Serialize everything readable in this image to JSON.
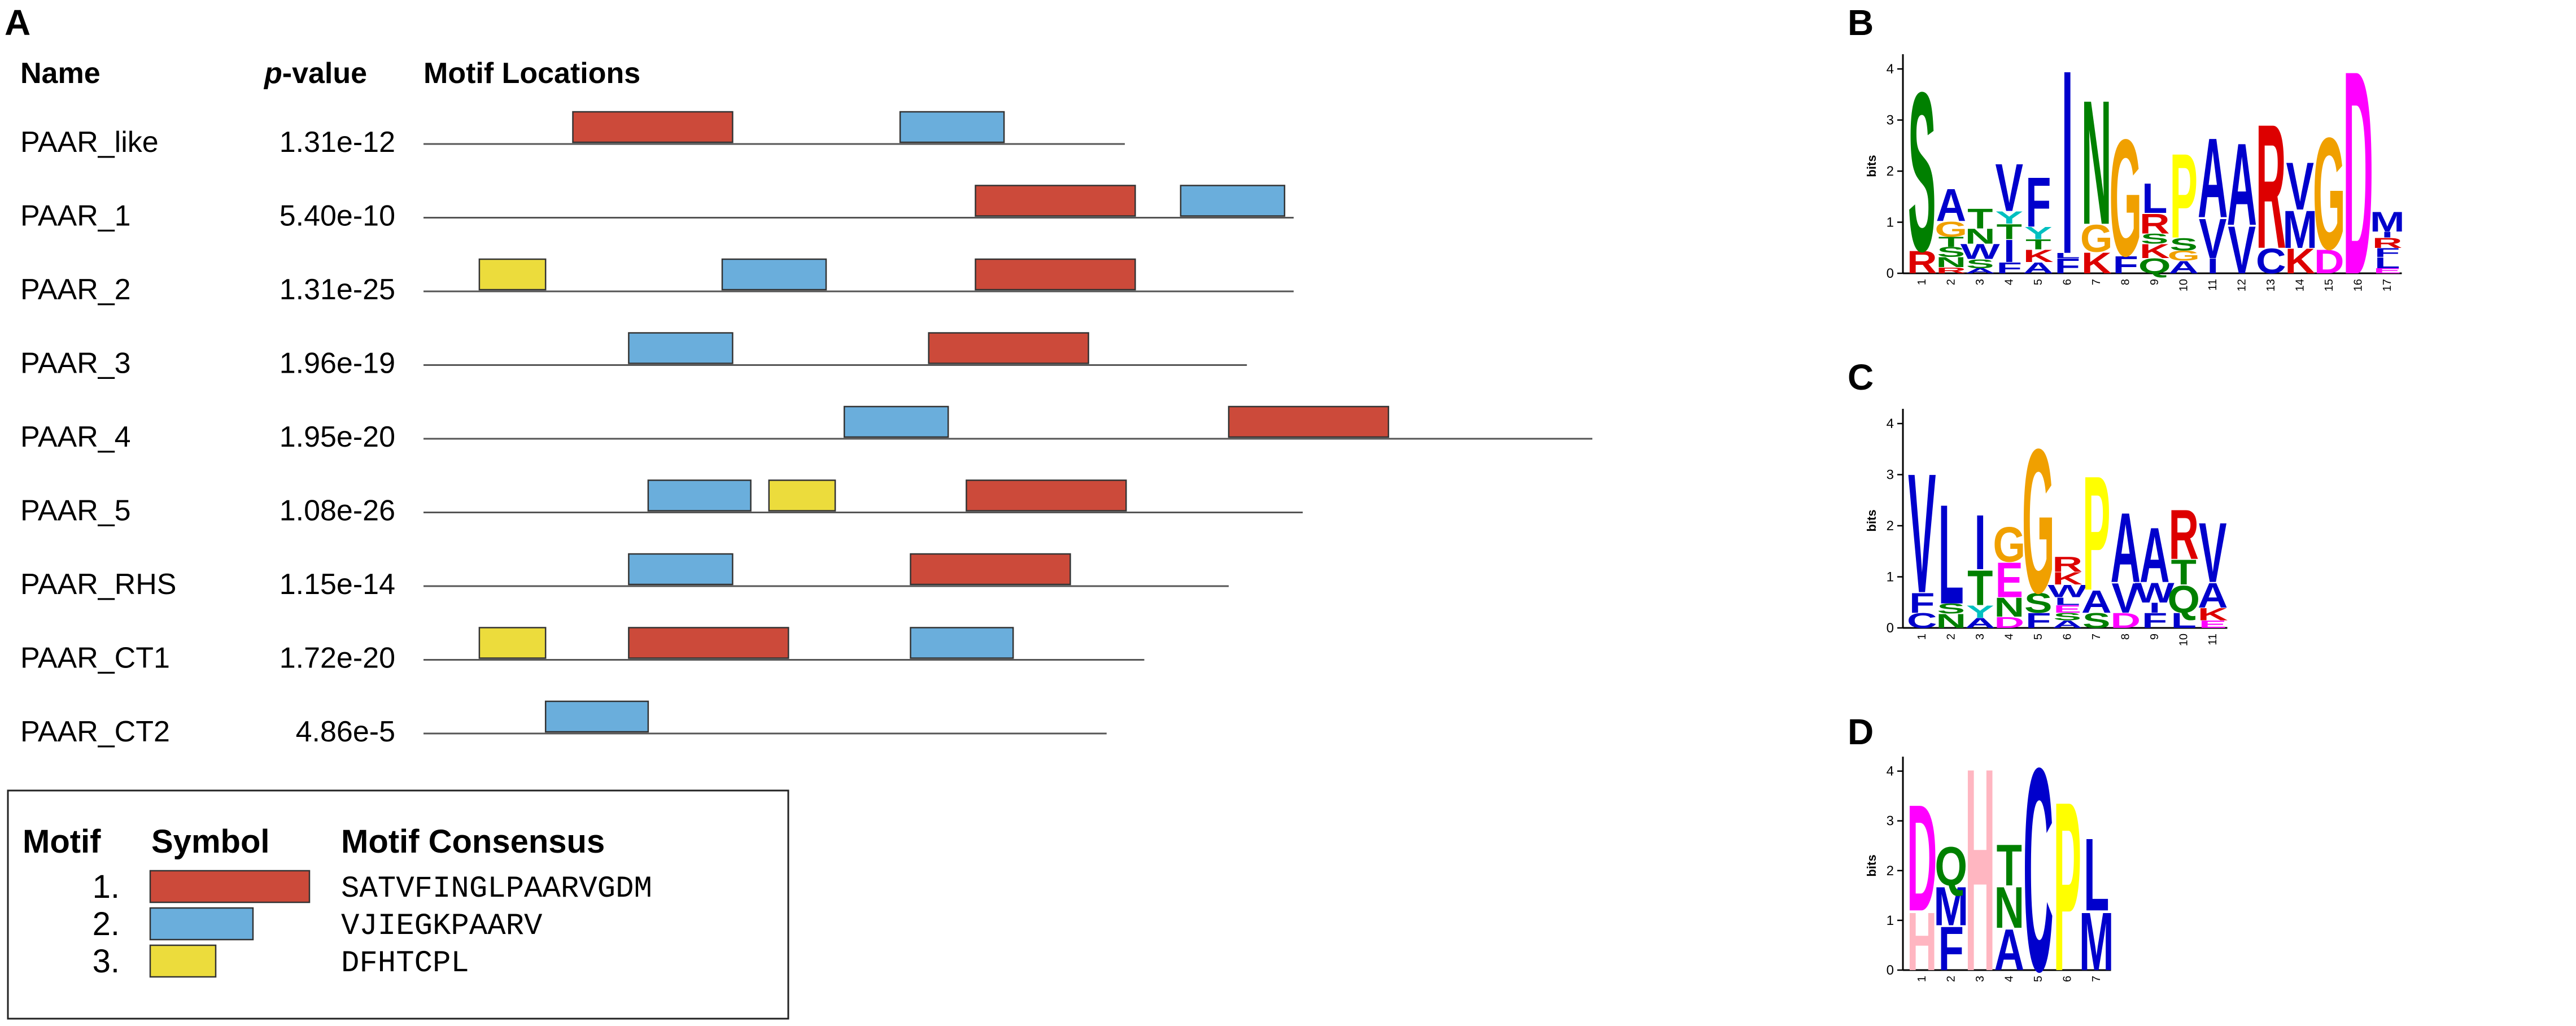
{
  "panels": {
    "A": {
      "letter": "A",
      "headers": {
        "name": "Name",
        "pvalue_p": "p",
        "pvalue_rest": "-value",
        "locations": "Motif Locations"
      },
      "rows": [
        {
          "name": "PAAR_like",
          "pvalue": "1.31e-12",
          "seq_length": 0.54,
          "motifs": [
            {
              "motif": 1,
              "start": 0.115,
              "end": 0.238
            },
            {
              "motif": 2,
              "start": 0.367,
              "end": 0.447
            }
          ]
        },
        {
          "name": "PAAR_1",
          "pvalue": "5.40e-10",
          "seq_length": 0.67,
          "motifs": [
            {
              "motif": 1,
              "start": 0.425,
              "end": 0.548
            },
            {
              "motif": 2,
              "start": 0.583,
              "end": 0.663
            }
          ]
        },
        {
          "name": "PAAR_2",
          "pvalue": "1.31e-25",
          "seq_length": 0.67,
          "motifs": [
            {
              "motif": 3,
              "start": 0.043,
              "end": 0.094
            },
            {
              "motif": 2,
              "start": 0.23,
              "end": 0.31
            },
            {
              "motif": 1,
              "start": 0.425,
              "end": 0.548
            }
          ]
        },
        {
          "name": "PAAR_3",
          "pvalue": "1.96e-19",
          "seq_length": 0.634,
          "motifs": [
            {
              "motif": 2,
              "start": 0.158,
              "end": 0.238
            },
            {
              "motif": 1,
              "start": 0.389,
              "end": 0.512
            }
          ]
        },
        {
          "name": "PAAR_4",
          "pvalue": "1.95e-20",
          "seq_length": 0.9,
          "motifs": [
            {
              "motif": 2,
              "start": 0.324,
              "end": 0.404
            },
            {
              "motif": 1,
              "start": 0.62,
              "end": 0.743
            }
          ]
        },
        {
          "name": "PAAR_5",
          "pvalue": "1.08e-26",
          "seq_length": 0.677,
          "motifs": [
            {
              "motif": 2,
              "start": 0.173,
              "end": 0.252
            },
            {
              "motif": 3,
              "start": 0.266,
              "end": 0.317
            },
            {
              "motif": 1,
              "start": 0.418,
              "end": 0.541
            }
          ]
        },
        {
          "name": "PAAR_RHS",
          "pvalue": "1.15e-14",
          "seq_length": 0.62,
          "motifs": [
            {
              "motif": 2,
              "start": 0.158,
              "end": 0.238
            },
            {
              "motif": 1,
              "start": 0.375,
              "end": 0.498
            }
          ]
        },
        {
          "name": "PAAR_CT1",
          "pvalue": "1.72e-20",
          "seq_length": 0.555,
          "motifs": [
            {
              "motif": 3,
              "start": 0.043,
              "end": 0.094
            },
            {
              "motif": 1,
              "start": 0.158,
              "end": 0.281
            },
            {
              "motif": 2,
              "start": 0.375,
              "end": 0.454
            }
          ]
        },
        {
          "name": "PAAR_CT2",
          "pvalue": "4.86e-5",
          "seq_length": 0.526,
          "motifs": [
            {
              "motif": 2,
              "start": 0.094,
              "end": 0.173
            }
          ]
        }
      ],
      "legend": {
        "headers": {
          "motif": "Motif",
          "symbol": "Symbol",
          "consensus": "Motif Consensus"
        },
        "items": [
          {
            "number": "1.",
            "motif": 1,
            "consensus": "SATVFINGLPAARVGDM"
          },
          {
            "number": "2.",
            "motif": 2,
            "consensus": "VJIEGKPAARV"
          },
          {
            "number": "3.",
            "motif": 3,
            "consensus": "DFHTCPL"
          }
        ]
      },
      "motif_colors": {
        "1": "#cc4a3a",
        "2": "#6aaedc",
        "3": "#ecdc3c"
      }
    },
    "logos": [
      {
        "letter": "B",
        "y_axis_label": "bits",
        "y_ticks": [
          "0",
          "1",
          "2",
          "3",
          "4"
        ],
        "y_max": 4.2,
        "positions": [
          {
            "label": "1",
            "letters": [
              {
                "char": "R",
                "bits": 0.45
              },
              {
                "char": "S",
                "bits": 3.2
              }
            ]
          },
          {
            "label": "2",
            "letters": [
              {
                "char": "R",
                "bits": 0.12
              },
              {
                "char": "N",
                "bits": 0.2
              },
              {
                "char": "S",
                "bits": 0.2
              },
              {
                "char": "T",
                "bits": 0.2
              },
              {
                "char": "G",
                "bits": 0.3
              },
              {
                "char": "A",
                "bits": 0.65
              }
            ]
          },
          {
            "label": "3",
            "letters": [
              {
                "char": "A",
                "bits": 0.1
              },
              {
                "char": "S",
                "bits": 0.18
              },
              {
                "char": "W",
                "bits": 0.3
              },
              {
                "char": "N",
                "bits": 0.3
              },
              {
                "char": "T",
                "bits": 0.4
              }
            ]
          },
          {
            "label": "4",
            "letters": [
              {
                "char": "F",
                "bits": 0.22
              },
              {
                "char": "I",
                "bits": 0.45
              },
              {
                "char": "T",
                "bits": 0.3
              },
              {
                "char": "Y",
                "bits": 0.25
              },
              {
                "char": "V",
                "bits": 0.95
              }
            ]
          },
          {
            "label": "5",
            "letters": [
              {
                "char": "A",
                "bits": 0.22
              },
              {
                "char": "K",
                "bits": 0.25
              },
              {
                "char": "T",
                "bits": 0.2
              },
              {
                "char": "Y",
                "bits": 0.25
              },
              {
                "char": "F",
                "bits": 1.0
              }
            ]
          },
          {
            "label": "6",
            "letters": [
              {
                "char": "F",
                "bits": 0.3
              },
              {
                "char": "L",
                "bits": 0.1
              },
              {
                "char": "I",
                "bits": 3.7
              }
            ]
          },
          {
            "label": "7",
            "letters": [
              {
                "char": "K",
                "bits": 0.42
              },
              {
                "char": "G",
                "bits": 0.55
              },
              {
                "char": "N",
                "bits": 2.5
              }
            ]
          },
          {
            "label": "8",
            "letters": [
              {
                "char": "F",
                "bits": 0.35
              },
              {
                "char": "G",
                "bits": 2.35
              }
            ]
          },
          {
            "label": "9",
            "letters": [
              {
                "char": "Q",
                "bits": 0.3
              },
              {
                "char": "K",
                "bits": 0.28
              },
              {
                "char": "S",
                "bits": 0.2
              },
              {
                "char": "R",
                "bits": 0.4
              },
              {
                "char": "L",
                "bits": 0.6
              }
            ]
          },
          {
            "label": "10",
            "letters": [
              {
                "char": "A",
                "bits": 0.25
              },
              {
                "char": "G",
                "bits": 0.2
              },
              {
                "char": "S",
                "bits": 0.25
              },
              {
                "char": "P",
                "bits": 1.7
              }
            ]
          },
          {
            "label": "11",
            "letters": [
              {
                "char": "I",
                "bits": 0.3
              },
              {
                "char": "V",
                "bits": 0.8
              },
              {
                "char": "A",
                "bits": 1.6
              }
            ]
          },
          {
            "label": "12",
            "letters": [
              {
                "char": "V",
                "bits": 0.95
              },
              {
                "char": "A",
                "bits": 1.65
              }
            ]
          },
          {
            "label": "13",
            "letters": [
              {
                "char": "C",
                "bits": 0.5
              },
              {
                "char": "R",
                "bits": 2.5
              }
            ]
          },
          {
            "label": "14",
            "letters": [
              {
                "char": "K",
                "bits": 0.5
              },
              {
                "char": "M",
                "bits": 0.75
              },
              {
                "char": "V",
                "bits": 0.95
              }
            ]
          },
          {
            "label": "15",
            "letters": [
              {
                "char": "D",
                "bits": 0.48
              },
              {
                "char": "G",
                "bits": 2.25
              }
            ]
          },
          {
            "label": "16",
            "letters": [
              {
                "char": "D",
                "bits": 4.1
              }
            ]
          },
          {
            "label": "17",
            "letters": [
              {
                "char": "E",
                "bits": 0.1
              },
              {
                "char": "L",
                "bits": 0.22
              },
              {
                "char": "F",
                "bits": 0.18
              },
              {
                "char": "R",
                "bits": 0.2
              },
              {
                "char": "I",
                "bits": 0.12
              },
              {
                "char": "M",
                "bits": 0.4
              }
            ]
          }
        ]
      },
      {
        "letter": "C",
        "y_axis_label": "bits",
        "y_ticks": [
          "0",
          "1",
          "2",
          "3",
          "4"
        ],
        "y_max": 4.2,
        "positions": [
          {
            "label": "1",
            "letters": [
              {
                "char": "C",
                "bits": 0.3
              },
              {
                "char": "F",
                "bits": 0.4
              },
              {
                "char": "V",
                "bits": 2.4
              }
            ]
          },
          {
            "label": "2",
            "letters": [
              {
                "char": "N",
                "bits": 0.28
              },
              {
                "char": "S",
                "bits": 0.2
              },
              {
                "char": "L",
                "bits": 2.0
              }
            ]
          },
          {
            "label": "3",
            "letters": [
              {
                "char": "A",
                "bits": 0.2
              },
              {
                "char": "Y",
                "bits": 0.25
              },
              {
                "char": "T",
                "bits": 0.7
              },
              {
                "char": "I",
                "bits": 1.1
              }
            ]
          },
          {
            "label": "4",
            "letters": [
              {
                "char": "D",
                "bits": 0.22
              },
              {
                "char": "N",
                "bits": 0.38
              },
              {
                "char": "E",
                "bits": 0.7
              },
              {
                "char": "G",
                "bits": 0.7
              }
            ]
          },
          {
            "label": "5",
            "letters": [
              {
                "char": "F",
                "bits": 0.3
              },
              {
                "char": "S",
                "bits": 0.4
              },
              {
                "char": "G",
                "bits": 2.9
              }
            ]
          },
          {
            "label": "6",
            "letters": [
              {
                "char": "A",
                "bits": 0.15
              },
              {
                "char": "S",
                "bits": 0.15
              },
              {
                "char": "E",
                "bits": 0.15
              },
              {
                "char": "L",
                "bits": 0.15
              },
              {
                "char": "W",
                "bits": 0.25
              },
              {
                "char": "K",
                "bits": 0.25
              },
              {
                "char": "R",
                "bits": 0.3
              }
            ]
          },
          {
            "label": "7",
            "letters": [
              {
                "char": "S",
                "bits": 0.3
              },
              {
                "char": "A",
                "bits": 0.45
              },
              {
                "char": "P",
                "bits": 2.3
              }
            ]
          },
          {
            "label": "8",
            "letters": [
              {
                "char": "D",
                "bits": 0.3
              },
              {
                "char": "V",
                "bits": 0.6
              },
              {
                "char": "A",
                "bits": 1.4
              }
            ]
          },
          {
            "label": "9",
            "letters": [
              {
                "char": "F",
                "bits": 0.3
              },
              {
                "char": "I",
                "bits": 0.2
              },
              {
                "char": "W",
                "bits": 0.4
              },
              {
                "char": "A",
                "bits": 1.1
              }
            ]
          },
          {
            "label": "10",
            "letters": [
              {
                "char": "L",
                "bits": 0.3
              },
              {
                "char": "Q",
                "bits": 0.55
              },
              {
                "char": "T",
                "bits": 0.5
              },
              {
                "char": "R",
                "bits": 1.0
              }
            ]
          },
          {
            "label": "11",
            "letters": [
              {
                "char": "E",
                "bits": 0.15
              },
              {
                "char": "K",
                "bits": 0.25
              },
              {
                "char": "A",
                "bits": 0.5
              },
              {
                "char": "V",
                "bits": 1.2
              }
            ]
          }
        ]
      },
      {
        "letter": "D",
        "y_axis_label": "bits",
        "y_ticks": [
          "0",
          "1",
          "2",
          "3",
          "4"
        ],
        "y_max": 4.2,
        "positions": [
          {
            "label": "1",
            "letters": [
              {
                "char": "H",
                "bits": 1.2
              },
              {
                "char": "D",
                "bits": 2.2
              }
            ]
          },
          {
            "label": "2",
            "letters": [
              {
                "char": "F",
                "bits": 0.9
              },
              {
                "char": "M",
                "bits": 0.8
              },
              {
                "char": "Q",
                "bits": 0.8
              }
            ]
          },
          {
            "label": "3",
            "letters": [
              {
                "char": "H",
                "bits": 4.2
              }
            ]
          },
          {
            "label": "4",
            "letters": [
              {
                "char": "A",
                "bits": 0.85
              },
              {
                "char": "N",
                "bits": 0.85
              },
              {
                "char": "T",
                "bits": 0.85
              }
            ]
          },
          {
            "label": "5",
            "letters": [
              {
                "char": "C",
                "bits": 4.2
              }
            ]
          },
          {
            "label": "6",
            "letters": [
              {
                "char": "P",
                "bits": 3.5
              }
            ]
          },
          {
            "label": "7",
            "letters": [
              {
                "char": "M",
                "bits": 1.2
              },
              {
                "char": "L",
                "bits": 1.5
              }
            ]
          }
        ]
      }
    ],
    "residue_colors": {
      "A": "#0000cc",
      "C": "#0000cc",
      "F": "#0000cc",
      "I": "#0000cc",
      "L": "#0000cc",
      "M": "#0000cc",
      "V": "#0000cc",
      "W": "#0000cc",
      "N": "#008000",
      "Q": "#008000",
      "S": "#008000",
      "T": "#008000",
      "G": "#f0a000",
      "P": "#ffff00",
      "Y": "#00c0c0",
      "H": "#ffb6c1",
      "D": "#ff00ff",
      "E": "#ff00ff",
      "K": "#dd0000",
      "R": "#dd0000"
    }
  }
}
